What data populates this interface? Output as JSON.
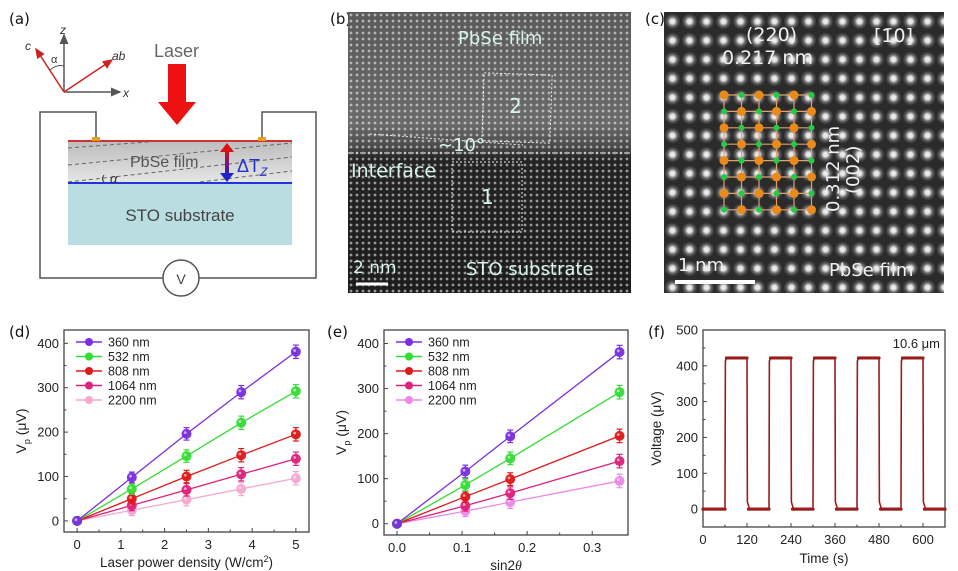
{
  "panels": {
    "a": {
      "label": "(a)",
      "axes": {
        "z": "z",
        "c": "c",
        "ab": "ab",
        "x": "x",
        "alpha": "α"
      },
      "laser_label": "Laser",
      "film_label": "PbSe film",
      "substrate_label": "STO substrate",
      "delta_t_label": "ΔT",
      "delta_t_sub": "Z",
      "tilt_label": "α",
      "voltmeter_label": "V",
      "colors": {
        "laser": "#ee1111",
        "film_top": "#cc3333",
        "film_bottom": "#2233dd",
        "substrate": "#b9dde0",
        "film": "#d9d9d9",
        "delta_t": "#2233cc"
      }
    },
    "b": {
      "label": "(b)",
      "film_label": "PbSe film",
      "interface_label": "Interface",
      "angle_label": "~10°",
      "region_1": "1",
      "region_2": "2",
      "scale_label": "2 nm",
      "substrate_label": "STO substrate"
    },
    "c": {
      "label": "(c)",
      "plane_label": "(220)",
      "spacing_1": "0.217 nm",
      "zone_axis": "[1̄0]",
      "spacing_2": "0.312 nm",
      "plane_2": "(002)",
      "scale_label": "1 nm",
      "film_label": "PbSe film",
      "colors": {
        "pb_atom": "#e98a1a",
        "se_atom": "#22cc44",
        "bond": "#e0a070"
      }
    }
  },
  "chart_data": [
    {
      "id": "d",
      "panel_label": "(d)",
      "type": "line",
      "xlabel": "Laser power density (W/cm²)",
      "xlabel_main": "Laser power density (W/cm",
      "xlabel_sup": "2",
      "xlabel_end": ")",
      "ylabel": "Vp (μV)",
      "ylabel_main": "V",
      "ylabel_sub": "p",
      "ylabel_unit": " (μV)",
      "xlim": [
        -0.3,
        5.3
      ],
      "ylim": [
        -25,
        430
      ],
      "xticks": [
        0,
        1,
        2,
        3,
        4,
        5
      ],
      "xtick_labels": [
        "0",
        "1",
        "2",
        "3",
        "4",
        "5"
      ],
      "yticks": [
        0,
        100,
        200,
        300,
        400
      ],
      "ytick_labels": [
        "0",
        "100",
        "200",
        "300",
        "400"
      ],
      "legend": "top-left",
      "grid": false,
      "x": [
        0,
        1.25,
        2.5,
        3.75,
        5
      ],
      "series": [
        {
          "name": "360 nm",
          "color": "#7b2ee0",
          "values": [
            0,
            98,
            196,
            290,
            381
          ],
          "err": [
            0,
            12,
            14,
            15,
            15
          ]
        },
        {
          "name": "532 nm",
          "color": "#33dd33",
          "values": [
            0,
            72,
            146,
            221,
            292
          ],
          "err": [
            0,
            12,
            14,
            15,
            15
          ]
        },
        {
          "name": "808 nm",
          "color": "#e01818",
          "values": [
            0,
            50,
            100,
            148,
            195
          ],
          "err": [
            0,
            12,
            14,
            15,
            15
          ]
        },
        {
          "name": "1064 nm",
          "color": "#e0207a",
          "values": [
            0,
            35,
            70,
            105,
            140
          ],
          "err": [
            0,
            12,
            14,
            15,
            15
          ]
        },
        {
          "name": "2200 nm",
          "color": "#f5a8d0",
          "values": [
            0,
            24,
            48,
            72,
            96
          ],
          "err": [
            0,
            12,
            14,
            15,
            15
          ]
        }
      ]
    },
    {
      "id": "e",
      "panel_label": "(e)",
      "type": "line",
      "xlabel": "sin2θ",
      "xlabel_main": "sin2",
      "xlabel_theta": "θ",
      "ylabel": "Vp (μV)",
      "ylabel_main": "V",
      "ylabel_sub": "p",
      "ylabel_unit": " (μV)",
      "xlim": [
        -0.02,
        0.355
      ],
      "ylim": [
        -25,
        430
      ],
      "xticks": [
        0,
        0.1,
        0.2,
        0.3
      ],
      "xtick_labels": [
        "0.0",
        "0.1",
        "0.2",
        "0.3"
      ],
      "yticks": [
        0,
        100,
        200,
        300,
        400
      ],
      "ytick_labels": [
        "0",
        "100",
        "200",
        "300",
        "400"
      ],
      "legend": "top-left",
      "grid": false,
      "x": [
        0,
        0.105,
        0.174,
        0.342
      ],
      "series": [
        {
          "name": "360 nm",
          "color": "#7b2ee0",
          "values": [
            0,
            116,
            194,
            381
          ],
          "err": [
            0,
            14,
            14,
            15
          ]
        },
        {
          "name": "532 nm",
          "color": "#33dd33",
          "values": [
            0,
            86,
            145,
            292
          ],
          "err": [
            0,
            13,
            14,
            15
          ]
        },
        {
          "name": "808 nm",
          "color": "#e01818",
          "values": [
            0,
            60,
            99,
            195
          ],
          "err": [
            0,
            12,
            14,
            15
          ]
        },
        {
          "name": "1064 nm",
          "color": "#e0207a",
          "values": [
            0,
            40,
            68,
            139
          ],
          "err": [
            0,
            12,
            14,
            15
          ]
        },
        {
          "name": "2200 nm",
          "color": "#ee88e8",
          "values": [
            0,
            28,
            48,
            95
          ],
          "err": [
            0,
            12,
            14,
            15
          ]
        }
      ]
    },
    {
      "id": "f",
      "panel_label": "(f)",
      "type": "line",
      "xlabel": "Time (s)",
      "ylabel": "Voltage (μV)",
      "annotation": "10.6 μm",
      "xlim": [
        0,
        660
      ],
      "ylim": [
        -50,
        500
      ],
      "xticks": [
        0,
        120,
        240,
        360,
        480,
        600
      ],
      "xtick_labels": [
        "0",
        "120",
        "240",
        "360",
        "480",
        "600"
      ],
      "yticks": [
        0,
        100,
        200,
        300,
        400,
        500
      ],
      "ytick_labels": [
        "0",
        "100",
        "200",
        "300",
        "400",
        "500"
      ],
      "legend": "none",
      "grid": false,
      "series": [
        {
          "name": "10.6 μm",
          "color": "#9b1c1c",
          "on_level": 422,
          "off_level": 0,
          "pulses": [
            [
              60,
              120
            ],
            [
              180,
              240
            ],
            [
              300,
              360
            ],
            [
              420,
              480
            ],
            [
              540,
              600
            ]
          ]
        }
      ]
    }
  ]
}
